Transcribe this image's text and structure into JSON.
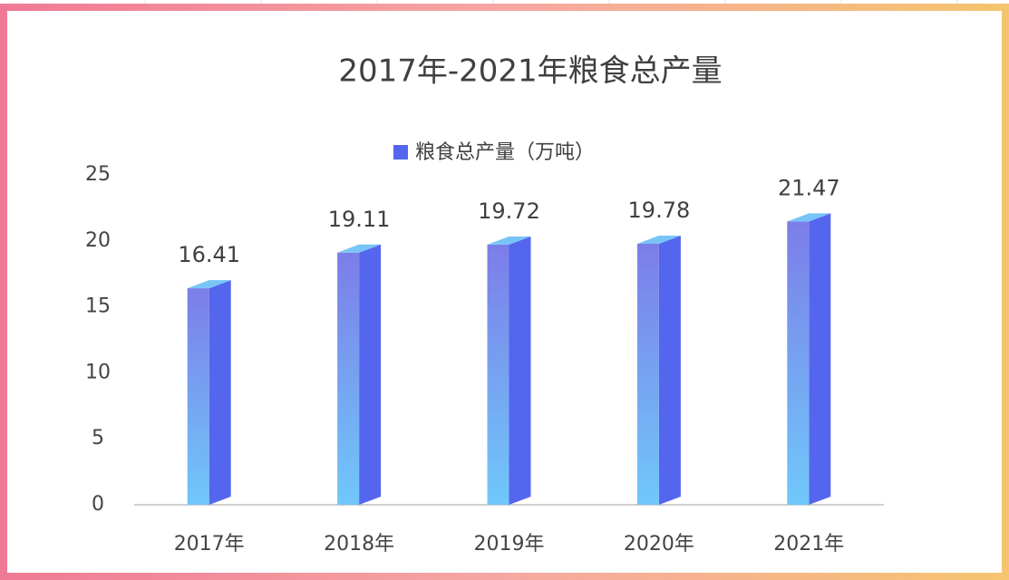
{
  "chart_data": {
    "type": "bar3d",
    "title": "2017年-2021年粮食总产量",
    "categories": [
      "2017年",
      "2018年",
      "2019年",
      "2020年",
      "2021年"
    ],
    "series": [
      {
        "name": "粮食总产量（万吨）",
        "color": "#5566ee",
        "values": [
          16.41,
          19.11,
          19.72,
          19.78,
          21.47
        ]
      }
    ],
    "ylim": [
      0,
      25
    ],
    "yticks": [
      0,
      5,
      10,
      15,
      20,
      25
    ],
    "grid": false,
    "legend": "top"
  }
}
